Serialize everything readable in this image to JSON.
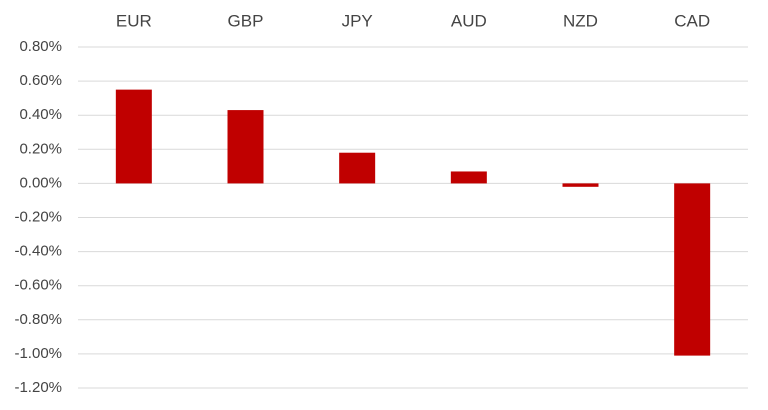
{
  "chart_data": {
    "type": "bar",
    "categories": [
      "EUR",
      "GBP",
      "JPY",
      "AUD",
      "NZD",
      "CAD"
    ],
    "values": [
      0.55,
      0.43,
      0.18,
      0.07,
      -0.02,
      -1.01
    ],
    "color": "#c00000",
    "ylim": [
      -1.2,
      0.8
    ],
    "yticks": [
      {
        "value": 0.8,
        "label": "0.80%"
      },
      {
        "value": 0.6,
        "label": "0.60%"
      },
      {
        "value": 0.4,
        "label": "0.40%"
      },
      {
        "value": 0.2,
        "label": "0.20%"
      },
      {
        "value": 0,
        "label": "0.00%"
      },
      {
        "value": -0.2,
        "label": "-0.20%"
      },
      {
        "value": -0.4,
        "label": "-0.40%"
      },
      {
        "value": -0.6,
        "label": "-0.60%"
      },
      {
        "value": -0.8,
        "label": "-0.80%"
      },
      {
        "value": -1.0,
        "label": "-1.00%"
      },
      {
        "value": -1.2,
        "label": "-1.20%"
      }
    ],
    "grid": true
  }
}
